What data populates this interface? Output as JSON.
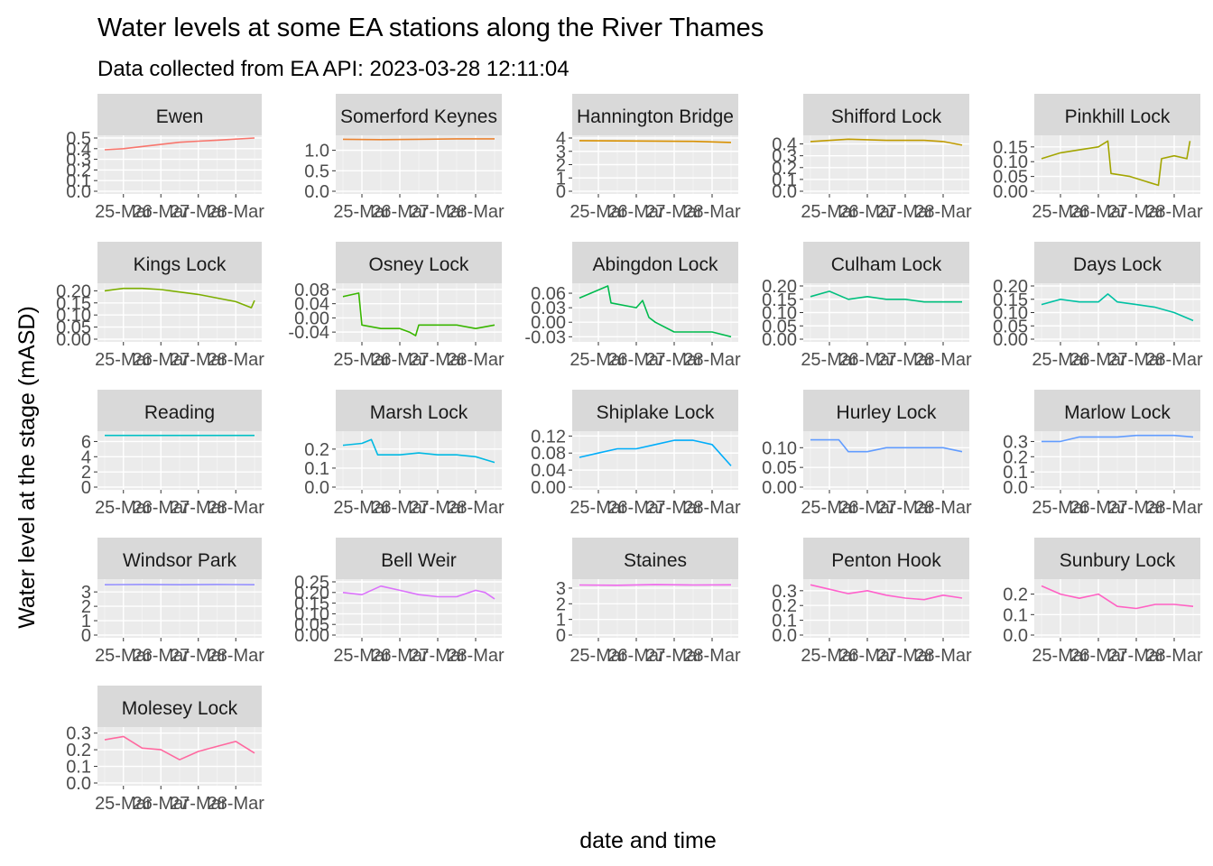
{
  "title": "Water levels at some EA stations along the River Thames",
  "subtitle": "Data collected from EA API: 2023-03-28 12:11:04",
  "xlabel": "date and time",
  "ylabel": "Water level at the stage (mASD)",
  "chart_data": {
    "type": "line",
    "facet_layout": "wrap, 5 columns",
    "grid": true,
    "legend": "none",
    "x_tick_labels": [
      "25-Mar",
      "26-Mar",
      "27-Mar",
      "28-Mar"
    ],
    "x_range": [
      "2023-03-24T12:00",
      "2023-03-28T12:00"
    ],
    "panels": [
      {
        "name": "Ewen",
        "color": "#F8766D",
        "ylim": [
          0,
          0.5
        ],
        "yticks": [
          "0.0",
          "0.1",
          "0.2",
          "0.3",
          "0.4",
          "0.5"
        ],
        "x": [
          "2023-03-24T12:00",
          "2023-03-25T00:00",
          "2023-03-25T12:00",
          "2023-03-26T00:00",
          "2023-03-26T12:00",
          "2023-03-27T00:00",
          "2023-03-27T12:00",
          "2023-03-28T00:00",
          "2023-03-28T12:00"
        ],
        "values": [
          0.39,
          0.4,
          0.42,
          0.44,
          0.46,
          0.47,
          0.48,
          0.49,
          0.5
        ]
      },
      {
        "name": "Somerford Keynes",
        "color": "#EA8331",
        "ylim": [
          0,
          1.3
        ],
        "yticks": [
          "0.0",
          "0.5",
          "1.0"
        ],
        "x": [
          "2023-03-24T12:00",
          "2023-03-25T12:00",
          "2023-03-26T12:00",
          "2023-03-27T12:00",
          "2023-03-28T12:00"
        ],
        "values": [
          1.27,
          1.26,
          1.27,
          1.28,
          1.28
        ]
      },
      {
        "name": "Hannington Bridge",
        "color": "#D89000",
        "ylim": [
          0,
          4
        ],
        "yticks": [
          "0",
          "1",
          "2",
          "3",
          "4"
        ],
        "x": [
          "2023-03-24T12:00",
          "2023-03-25T12:00",
          "2023-03-26T12:00",
          "2023-03-27T12:00",
          "2023-03-28T12:00"
        ],
        "values": [
          3.8,
          3.78,
          3.77,
          3.75,
          3.67
        ]
      },
      {
        "name": "Shifford Lock",
        "color": "#C09B00",
        "ylim": [
          0,
          0.45
        ],
        "yticks": [
          "0.0",
          "0.1",
          "0.2",
          "0.3",
          "0.4"
        ],
        "x": [
          "2023-03-24T12:00",
          "2023-03-25T12:00",
          "2023-03-26T12:00",
          "2023-03-27T12:00",
          "2023-03-28T00:00",
          "2023-03-28T12:00"
        ],
        "values": [
          0.42,
          0.44,
          0.43,
          0.43,
          0.42,
          0.39
        ]
      },
      {
        "name": "Pinkhill Lock",
        "color": "#A3A500",
        "ylim": [
          0,
          0.18
        ],
        "yticks": [
          "0.00",
          "0.05",
          "0.10",
          "0.15"
        ],
        "x": [
          "2023-03-24T12:00",
          "2023-03-25T00:00",
          "2023-03-25T12:00",
          "2023-03-26T00:00",
          "2023-03-26T06:00",
          "2023-03-26T08:00",
          "2023-03-26T20:00",
          "2023-03-27T08:00",
          "2023-03-27T14:00",
          "2023-03-27T16:00",
          "2023-03-28T00:00",
          "2023-03-28T08:00",
          "2023-03-28T10:00"
        ],
        "values": [
          0.11,
          0.13,
          0.14,
          0.15,
          0.17,
          0.06,
          0.05,
          0.03,
          0.02,
          0.11,
          0.12,
          0.11,
          0.17
        ]
      },
      {
        "name": "Kings Lock",
        "color": "#7CAE00",
        "ylim": [
          0,
          0.22
        ],
        "yticks": [
          "0.00",
          "0.05",
          "0.10",
          "0.15",
          "0.20"
        ],
        "x": [
          "2023-03-24T12:00",
          "2023-03-25T00:00",
          "2023-03-25T12:00",
          "2023-03-26T00:00",
          "2023-03-26T12:00",
          "2023-03-27T00:00",
          "2023-03-27T12:00",
          "2023-03-28T00:00",
          "2023-03-28T10:00",
          "2023-03-28T12:00"
        ],
        "values": [
          0.2,
          0.21,
          0.21,
          0.205,
          0.195,
          0.185,
          0.17,
          0.155,
          0.13,
          0.16
        ]
      },
      {
        "name": "Osney Lock",
        "color": "#39B600",
        "ylim": [
          -0.06,
          0.09
        ],
        "yticks": [
          "-0.04",
          "0.00",
          "0.04",
          "0.08"
        ],
        "x": [
          "2023-03-24T12:00",
          "2023-03-24T22:00",
          "2023-03-25T00:00",
          "2023-03-25T12:00",
          "2023-03-26T00:00",
          "2023-03-26T06:00",
          "2023-03-26T10:00",
          "2023-03-26T12:00",
          "2023-03-27T00:00",
          "2023-03-27T12:00",
          "2023-03-28T00:00",
          "2023-03-28T12:00"
        ],
        "values": [
          0.06,
          0.07,
          -0.02,
          -0.03,
          -0.03,
          -0.04,
          -0.05,
          -0.02,
          -0.02,
          -0.02,
          -0.03,
          -0.02
        ]
      },
      {
        "name": "Abingdon Lock",
        "color": "#00BB4E",
        "ylim": [
          -0.035,
          0.075
        ],
        "yticks": [
          "-0.03",
          "0.00",
          "0.03",
          "0.06"
        ],
        "x": [
          "2023-03-24T12:00",
          "2023-03-25T06:00",
          "2023-03-25T08:00",
          "2023-03-26T00:00",
          "2023-03-26T04:00",
          "2023-03-26T08:00",
          "2023-03-26T12:00",
          "2023-03-27T00:00",
          "2023-03-27T12:00",
          "2023-03-28T00:00",
          "2023-03-28T12:00"
        ],
        "values": [
          0.05,
          0.075,
          0.04,
          0.03,
          0.045,
          0.01,
          0.0,
          -0.02,
          -0.02,
          -0.02,
          -0.03
        ]
      },
      {
        "name": "Culham Lock",
        "color": "#00BF7D",
        "ylim": [
          0,
          0.2
        ],
        "yticks": [
          "0.00",
          "0.05",
          "0.10",
          "0.15",
          "0.20"
        ],
        "x": [
          "2023-03-24T12:00",
          "2023-03-25T00:00",
          "2023-03-25T12:00",
          "2023-03-26T00:00",
          "2023-03-26T12:00",
          "2023-03-27T00:00",
          "2023-03-27T12:00",
          "2023-03-28T00:00",
          "2023-03-28T12:00"
        ],
        "values": [
          0.16,
          0.18,
          0.15,
          0.16,
          0.15,
          0.15,
          0.14,
          0.14,
          0.14
        ]
      },
      {
        "name": "Days Lock",
        "color": "#00C1A3",
        "ylim": [
          0,
          0.2
        ],
        "yticks": [
          "0.00",
          "0.05",
          "0.10",
          "0.15",
          "0.20"
        ],
        "x": [
          "2023-03-24T12:00",
          "2023-03-25T00:00",
          "2023-03-25T12:00",
          "2023-03-26T00:00",
          "2023-03-26T06:00",
          "2023-03-26T12:00",
          "2023-03-27T00:00",
          "2023-03-27T12:00",
          "2023-03-28T00:00",
          "2023-03-28T12:00"
        ],
        "values": [
          0.13,
          0.15,
          0.14,
          0.14,
          0.17,
          0.14,
          0.13,
          0.12,
          0.1,
          0.07
        ]
      },
      {
        "name": "Reading",
        "color": "#00BFC4",
        "ylim": [
          0,
          7
        ],
        "yticks": [
          "0",
          "2",
          "4",
          "6"
        ],
        "x": [
          "2023-03-24T12:00",
          "2023-03-28T12:00"
        ],
        "values": [
          6.8,
          6.8
        ]
      },
      {
        "name": "Marsh Lock",
        "color": "#00B9E3",
        "ylim": [
          0,
          0.28
        ],
        "yticks": [
          "0.0",
          "0.1",
          "0.2"
        ],
        "x": [
          "2023-03-24T12:00",
          "2023-03-25T00:00",
          "2023-03-25T06:00",
          "2023-03-25T10:00",
          "2023-03-26T00:00",
          "2023-03-26T12:00",
          "2023-03-27T00:00",
          "2023-03-27T12:00",
          "2023-03-28T00:00",
          "2023-03-28T12:00"
        ],
        "values": [
          0.22,
          0.23,
          0.25,
          0.17,
          0.17,
          0.18,
          0.17,
          0.17,
          0.16,
          0.13
        ]
      },
      {
        "name": "Shiplake Lock",
        "color": "#00ADFA",
        "ylim": [
          0,
          0.125
        ],
        "yticks": [
          "0.00",
          "0.04",
          "0.08",
          "0.12"
        ],
        "x": [
          "2023-03-24T12:00",
          "2023-03-25T00:00",
          "2023-03-25T12:00",
          "2023-03-26T00:00",
          "2023-03-26T12:00",
          "2023-03-27T00:00",
          "2023-03-27T12:00",
          "2023-03-28T00:00",
          "2023-03-28T12:00"
        ],
        "values": [
          0.07,
          0.08,
          0.09,
          0.09,
          0.1,
          0.11,
          0.11,
          0.1,
          0.05
        ]
      },
      {
        "name": "Hurley Lock",
        "color": "#619CFF",
        "ylim": [
          0,
          0.135
        ],
        "yticks": [
          "0.00",
          "0.05",
          "0.10"
        ],
        "x": [
          "2023-03-24T12:00",
          "2023-03-25T00:00",
          "2023-03-25T06:00",
          "2023-03-25T12:00",
          "2023-03-26T00:00",
          "2023-03-26T12:00",
          "2023-03-27T00:00",
          "2023-03-27T12:00",
          "2023-03-28T00:00",
          "2023-03-28T12:00"
        ],
        "values": [
          0.12,
          0.12,
          0.12,
          0.09,
          0.09,
          0.1,
          0.1,
          0.1,
          0.1,
          0.09
        ]
      },
      {
        "name": "Marlow Lock",
        "color": "#619CFF",
        "ylim": [
          0,
          0.35
        ],
        "yticks": [
          "0.0",
          "0.1",
          "0.2",
          "0.3"
        ],
        "x": [
          "2023-03-24T12:00",
          "2023-03-25T00:00",
          "2023-03-25T12:00",
          "2023-03-26T00:00",
          "2023-03-26T12:00",
          "2023-03-27T00:00",
          "2023-03-27T12:00",
          "2023-03-28T00:00",
          "2023-03-28T12:00"
        ],
        "values": [
          0.3,
          0.3,
          0.33,
          0.33,
          0.33,
          0.34,
          0.34,
          0.34,
          0.33
        ]
      },
      {
        "name": "Windsor Park",
        "color": "#9590FF",
        "ylim": [
          0,
          3.7
        ],
        "yticks": [
          "0",
          "1",
          "2",
          "3"
        ],
        "x": [
          "2023-03-24T12:00",
          "2023-03-25T12:00",
          "2023-03-26T12:00",
          "2023-03-27T12:00",
          "2023-03-28T12:00"
        ],
        "values": [
          3.5,
          3.52,
          3.5,
          3.52,
          3.5
        ]
      },
      {
        "name": "Bell Weir",
        "color": "#DB72FB",
        "ylim": [
          0,
          0.25
        ],
        "yticks": [
          "0.00",
          "0.05",
          "0.10",
          "0.15",
          "0.20",
          "0.25"
        ],
        "x": [
          "2023-03-24T12:00",
          "2023-03-25T00:00",
          "2023-03-25T12:00",
          "2023-03-26T00:00",
          "2023-03-26T12:00",
          "2023-03-27T00:00",
          "2023-03-27T12:00",
          "2023-03-28T00:00",
          "2023-03-28T06:00",
          "2023-03-28T12:00"
        ],
        "values": [
          0.2,
          0.19,
          0.23,
          0.21,
          0.19,
          0.18,
          0.18,
          0.21,
          0.2,
          0.17
        ]
      },
      {
        "name": "Staines",
        "color": "#EF67EB",
        "ylim": [
          0,
          3.4
        ],
        "yticks": [
          "0",
          "1",
          "2",
          "3"
        ],
        "x": [
          "2023-03-24T12:00",
          "2023-03-25T12:00",
          "2023-03-26T12:00",
          "2023-03-27T12:00",
          "2023-03-28T12:00"
        ],
        "values": [
          3.2,
          3.18,
          3.22,
          3.2,
          3.21
        ]
      },
      {
        "name": "Penton Hook",
        "color": "#FF61CC",
        "ylim": [
          0,
          0.36
        ],
        "yticks": [
          "0.0",
          "0.1",
          "0.2",
          "0.3"
        ],
        "x": [
          "2023-03-24T12:00",
          "2023-03-25T00:00",
          "2023-03-25T12:00",
          "2023-03-26T00:00",
          "2023-03-26T12:00",
          "2023-03-27T00:00",
          "2023-03-27T12:00",
          "2023-03-28T00:00",
          "2023-03-28T12:00"
        ],
        "values": [
          0.34,
          0.31,
          0.28,
          0.3,
          0.27,
          0.25,
          0.24,
          0.27,
          0.25
        ]
      },
      {
        "name": "Sunbury  Lock",
        "color": "#FF61C3",
        "ylim": [
          0,
          0.26
        ],
        "yticks": [
          "0.0",
          "0.1",
          "0.2"
        ],
        "x": [
          "2023-03-24T12:00",
          "2023-03-25T00:00",
          "2023-03-25T12:00",
          "2023-03-26T00:00",
          "2023-03-26T12:00",
          "2023-03-27T00:00",
          "2023-03-27T12:00",
          "2023-03-28T00:00",
          "2023-03-28T12:00"
        ],
        "values": [
          0.24,
          0.2,
          0.18,
          0.2,
          0.14,
          0.13,
          0.15,
          0.15,
          0.14
        ]
      },
      {
        "name": "Molesey Lock",
        "color": "#FF689F",
        "ylim": [
          0,
          0.32
        ],
        "yticks": [
          "0.0",
          "0.1",
          "0.2",
          "0.3"
        ],
        "x": [
          "2023-03-24T12:00",
          "2023-03-25T00:00",
          "2023-03-25T12:00",
          "2023-03-26T00:00",
          "2023-03-26T12:00",
          "2023-03-27T00:00",
          "2023-03-27T12:00",
          "2023-03-28T00:00",
          "2023-03-28T12:00"
        ],
        "values": [
          0.26,
          0.28,
          0.21,
          0.2,
          0.14,
          0.19,
          0.22,
          0.25,
          0.18
        ]
      }
    ]
  }
}
